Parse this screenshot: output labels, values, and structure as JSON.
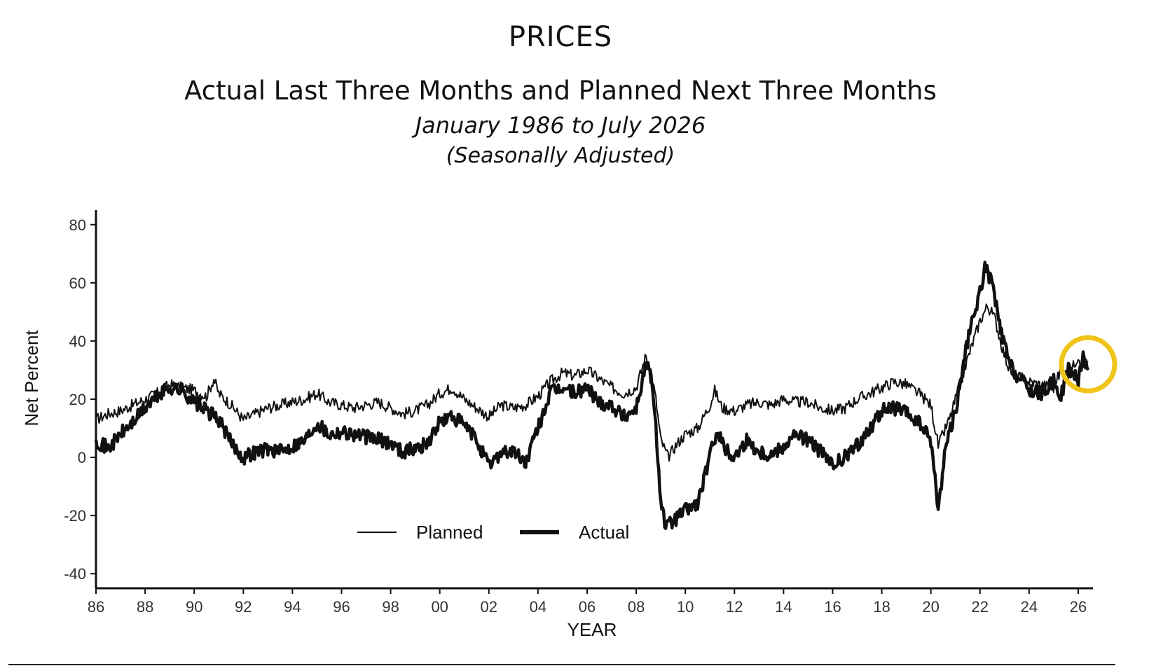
{
  "header": {
    "title": "PRICES",
    "subtitle": "Actual Last Three Months and Planned Next Three Months",
    "date_range": "January 1986 to July 2026",
    "note": "(Seasonally Adjusted)"
  },
  "colors": {
    "lines": "#111111",
    "highlight": "#F0C419",
    "axis": "#111111"
  },
  "chart_data": {
    "type": "line",
    "xlabel": "YEAR",
    "ylabel": "Net Percent",
    "xlim": [
      1986,
      2026.6
    ],
    "ylim": [
      -45,
      85
    ],
    "x_tick_values": [
      1986,
      1988,
      1990,
      1992,
      1994,
      1996,
      1998,
      2000,
      2002,
      2004,
      2006,
      2008,
      2010,
      2012,
      2014,
      2016,
      2018,
      2020,
      2022,
      2024,
      2026
    ],
    "x_tick_labels": [
      "86",
      "88",
      "90",
      "92",
      "94",
      "96",
      "98",
      "00",
      "02",
      "04",
      "06",
      "08",
      "10",
      "12",
      "14",
      "16",
      "18",
      "20",
      "22",
      "24",
      "26"
    ],
    "y_ticks": [
      -40,
      -20,
      0,
      20,
      40,
      60,
      80
    ],
    "grid": false,
    "legend_position": "bottom-left",
    "annotation": "highlight circle around latest values (2026)",
    "series": [
      {
        "name": "Planned",
        "line_weight": "thin",
        "points": [
          [
            1986.0,
            13
          ],
          [
            1986.5,
            15
          ],
          [
            1987.0,
            16
          ],
          [
            1987.5,
            18
          ],
          [
            1988.0,
            20
          ],
          [
            1988.5,
            22
          ],
          [
            1989.0,
            25
          ],
          [
            1989.5,
            24
          ],
          [
            1990.0,
            23
          ],
          [
            1990.5,
            21
          ],
          [
            1990.8,
            27
          ],
          [
            1991.0,
            22
          ],
          [
            1991.5,
            18
          ],
          [
            1992.0,
            13
          ],
          [
            1992.5,
            15
          ],
          [
            1993.0,
            17
          ],
          [
            1993.5,
            18
          ],
          [
            1994.0,
            19
          ],
          [
            1994.5,
            20
          ],
          [
            1995.0,
            22
          ],
          [
            1995.5,
            19
          ],
          [
            1996.0,
            18
          ],
          [
            1996.5,
            17
          ],
          [
            1997.0,
            18
          ],
          [
            1997.5,
            19
          ],
          [
            1998.0,
            17
          ],
          [
            1998.5,
            15
          ],
          [
            1999.0,
            16
          ],
          [
            1999.5,
            18
          ],
          [
            2000.0,
            22
          ],
          [
            2000.5,
            24
          ],
          [
            2001.0,
            20
          ],
          [
            2001.5,
            17
          ],
          [
            2002.0,
            14
          ],
          [
            2002.5,
            18
          ],
          [
            2003.0,
            17
          ],
          [
            2003.5,
            18
          ],
          [
            2004.0,
            21
          ],
          [
            2004.5,
            26
          ],
          [
            2005.0,
            29
          ],
          [
            2005.5,
            28
          ],
          [
            2006.0,
            30
          ],
          [
            2006.5,
            27
          ],
          [
            2007.0,
            24
          ],
          [
            2007.5,
            22
          ],
          [
            2008.0,
            24
          ],
          [
            2008.4,
            35
          ],
          [
            2008.6,
            30
          ],
          [
            2008.8,
            20
          ],
          [
            2009.0,
            6
          ],
          [
            2009.3,
            0
          ],
          [
            2009.6,
            4
          ],
          [
            2010.0,
            8
          ],
          [
            2010.5,
            10
          ],
          [
            2011.0,
            18
          ],
          [
            2011.2,
            23
          ],
          [
            2011.5,
            17
          ],
          [
            2012.0,
            16
          ],
          [
            2012.5,
            18
          ],
          [
            2013.0,
            19
          ],
          [
            2013.5,
            18
          ],
          [
            2014.0,
            20
          ],
          [
            2014.5,
            19
          ],
          [
            2015.0,
            19
          ],
          [
            2015.5,
            17
          ],
          [
            2016.0,
            16
          ],
          [
            2016.5,
            17
          ],
          [
            2017.0,
            20
          ],
          [
            2017.5,
            22
          ],
          [
            2018.0,
            24
          ],
          [
            2018.5,
            26
          ],
          [
            2019.0,
            25
          ],
          [
            2019.5,
            22
          ],
          [
            2020.0,
            18
          ],
          [
            2020.3,
            4
          ],
          [
            2020.5,
            8
          ],
          [
            2020.8,
            14
          ],
          [
            2021.0,
            20
          ],
          [
            2021.5,
            34
          ],
          [
            2022.0,
            47
          ],
          [
            2022.3,
            52
          ],
          [
            2022.6,
            48
          ],
          [
            2022.9,
            38
          ],
          [
            2023.2,
            30
          ],
          [
            2023.5,
            28
          ],
          [
            2024.0,
            26
          ],
          [
            2024.5,
            25
          ],
          [
            2025.0,
            24
          ],
          [
            2025.3,
            30
          ],
          [
            2025.6,
            28
          ],
          [
            2026.0,
            35
          ],
          [
            2026.2,
            31
          ],
          [
            2026.4,
            33
          ]
        ]
      },
      {
        "name": "Actual",
        "line_weight": "thick",
        "points": [
          [
            1986.0,
            6
          ],
          [
            1986.5,
            3
          ],
          [
            1987.0,
            8
          ],
          [
            1987.5,
            12
          ],
          [
            1988.0,
            17
          ],
          [
            1988.5,
            21
          ],
          [
            1989.0,
            24
          ],
          [
            1989.5,
            23
          ],
          [
            1990.0,
            19
          ],
          [
            1990.5,
            16
          ],
          [
            1991.0,
            13
          ],
          [
            1991.5,
            5
          ],
          [
            1992.0,
            0
          ],
          [
            1992.5,
            2
          ],
          [
            1993.0,
            3
          ],
          [
            1993.5,
            2
          ],
          [
            1994.0,
            4
          ],
          [
            1994.5,
            6
          ],
          [
            1995.0,
            12
          ],
          [
            1995.5,
            8
          ],
          [
            1996.0,
            9
          ],
          [
            1996.5,
            8
          ],
          [
            1997.0,
            7
          ],
          [
            1997.5,
            6
          ],
          [
            1998.0,
            5
          ],
          [
            1998.5,
            2
          ],
          [
            1999.0,
            3
          ],
          [
            1999.5,
            5
          ],
          [
            2000.0,
            12
          ],
          [
            2000.5,
            14
          ],
          [
            2001.0,
            11
          ],
          [
            2001.5,
            6
          ],
          [
            2002.0,
            -3
          ],
          [
            2002.5,
            2
          ],
          [
            2003.0,
            2
          ],
          [
            2003.5,
            -2
          ],
          [
            2004.0,
            10
          ],
          [
            2004.5,
            22
          ],
          [
            2005.0,
            24
          ],
          [
            2005.5,
            22
          ],
          [
            2006.0,
            24
          ],
          [
            2006.5,
            19
          ],
          [
            2007.0,
            18
          ],
          [
            2007.5,
            14
          ],
          [
            2008.0,
            17
          ],
          [
            2008.4,
            32
          ],
          [
            2008.6,
            28
          ],
          [
            2008.8,
            10
          ],
          [
            2009.0,
            -14
          ],
          [
            2009.2,
            -24
          ],
          [
            2009.5,
            -22
          ],
          [
            2010.0,
            -18
          ],
          [
            2010.5,
            -16
          ],
          [
            2011.0,
            0
          ],
          [
            2011.3,
            10
          ],
          [
            2011.6,
            3
          ],
          [
            2012.0,
            0
          ],
          [
            2012.5,
            6
          ],
          [
            2013.0,
            2
          ],
          [
            2013.5,
            1
          ],
          [
            2014.0,
            4
          ],
          [
            2014.5,
            8
          ],
          [
            2015.0,
            6
          ],
          [
            2015.5,
            2
          ],
          [
            2016.0,
            -3
          ],
          [
            2016.5,
            0
          ],
          [
            2017.0,
            4
          ],
          [
            2017.5,
            10
          ],
          [
            2018.0,
            16
          ],
          [
            2018.5,
            17
          ],
          [
            2019.0,
            15
          ],
          [
            2019.5,
            12
          ],
          [
            2020.0,
            6
          ],
          [
            2020.3,
            -18
          ],
          [
            2020.6,
            4
          ],
          [
            2021.0,
            16
          ],
          [
            2021.5,
            40
          ],
          [
            2022.0,
            57
          ],
          [
            2022.2,
            65
          ],
          [
            2022.5,
            60
          ],
          [
            2022.8,
            45
          ],
          [
            2023.2,
            32
          ],
          [
            2023.5,
            28
          ],
          [
            2024.0,
            23
          ],
          [
            2024.5,
            22
          ],
          [
            2025.0,
            26
          ],
          [
            2025.3,
            21
          ],
          [
            2025.6,
            31
          ],
          [
            2026.0,
            26
          ],
          [
            2026.2,
            36
          ],
          [
            2026.4,
            30
          ]
        ]
      }
    ]
  }
}
